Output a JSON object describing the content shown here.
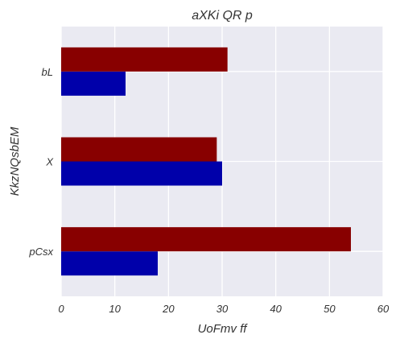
{
  "chart_data": {
    "type": "bar",
    "orientation": "horizontal",
    "title": "aXKi  QR p",
    "xlabel": "UoFmv ff",
    "ylabel": "KkzNQsbEM",
    "categories": [
      "pCsx",
      "X",
      "bL"
    ],
    "xlim": [
      0,
      60
    ],
    "xticks": [
      "0",
      "10",
      "20",
      "30",
      "40",
      "50",
      "60"
    ],
    "grid": true,
    "legend": "none",
    "series": [
      {
        "values": [
          18,
          30,
          12
        ],
        "color": "#0000aa"
      },
      {
        "values": [
          54,
          29,
          31
        ],
        "color": "#880000"
      }
    ]
  },
  "colors": {
    "plot_background": "#eaeaf2",
    "grid": "#ffffff",
    "text": "#333333"
  }
}
